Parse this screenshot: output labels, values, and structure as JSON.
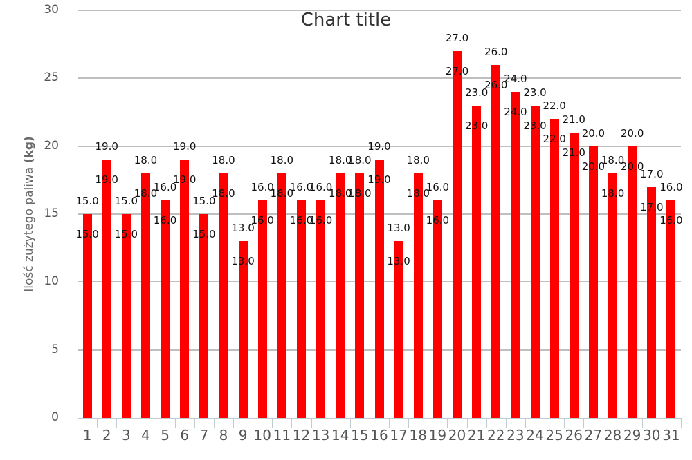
{
  "chart_data": {
    "type": "bar",
    "title": "Chart title",
    "xlabel": "",
    "ylabel": "Ilość zużytego paliwa (kg)",
    "ylabel_main": "Ilość zużytego paliwa ",
    "ylabel_unit": "(kg)",
    "ylim": [
      0,
      30
    ],
    "yticks": [
      0,
      5,
      10,
      15,
      20,
      25,
      30
    ],
    "grid": true,
    "legend": null,
    "bar_color": "#ff0000",
    "categories": [
      "1",
      "2",
      "3",
      "4",
      "5",
      "6",
      "7",
      "8",
      "9",
      "10",
      "11",
      "12",
      "13",
      "14",
      "15",
      "16",
      "17",
      "18",
      "19",
      "20",
      "21",
      "22",
      "23",
      "24",
      "25",
      "26",
      "27",
      "28",
      "29",
      "30",
      "31"
    ],
    "values": [
      15,
      19,
      15,
      18,
      16,
      19,
      15,
      18,
      13,
      16,
      18,
      16,
      16,
      18,
      18,
      19,
      13,
      18,
      16,
      27,
      23,
      26,
      24,
      23,
      22,
      21,
      20,
      18,
      20,
      17,
      16
    ],
    "data_labels": [
      "15.0",
      "19.0",
      "15.0",
      "18.0",
      "16.0",
      "19.0",
      "15.0",
      "18.0",
      "13.0",
      "16.0",
      "18.0",
      "16.0",
      "16.0",
      "18.0",
      "18.0",
      "19.0",
      "13.0",
      "18.0",
      "16.0",
      "27.0",
      "23.0",
      "26.0",
      "24.0",
      "23.0",
      "22.0",
      "21.0",
      "20.0",
      "18.0",
      "20.0",
      "17.0",
      "16.0"
    ]
  }
}
